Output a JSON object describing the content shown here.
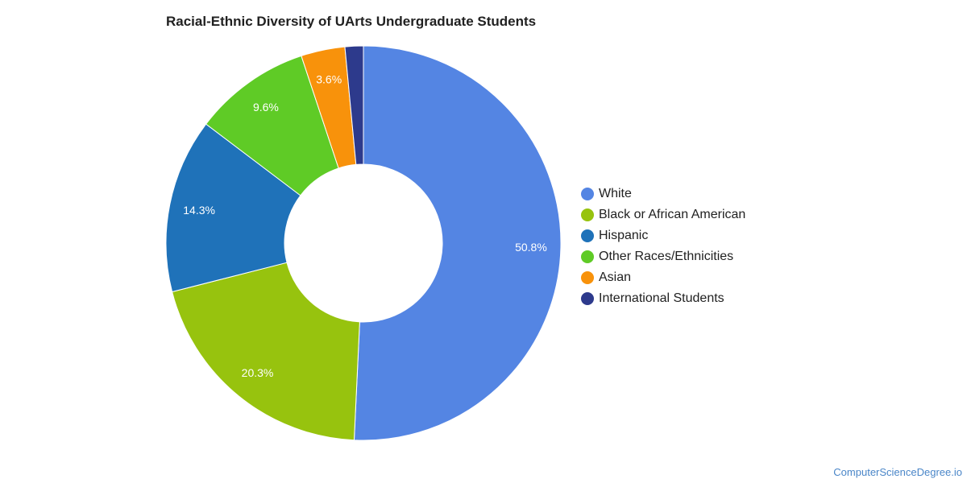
{
  "chart_data": {
    "type": "pie",
    "title": "Racial-Ethnic Diversity of UArts Undergraduate Students",
    "donut": true,
    "legend_position": "right",
    "slices": [
      {
        "label": "White",
        "value": 50.8,
        "value_label": "50.8%",
        "color": "#5485e3"
      },
      {
        "label": "Black or African American",
        "value": 20.3,
        "value_label": "20.3%",
        "color": "#97c30e"
      },
      {
        "label": "Hispanic",
        "value": 14.3,
        "value_label": "14.3%",
        "color": "#1f72b9"
      },
      {
        "label": "Other Races/Ethnicities",
        "value": 9.6,
        "value_label": "9.6%",
        "color": "#5fcb26"
      },
      {
        "label": "Asian",
        "value": 3.6,
        "value_label": "3.6%",
        "color": "#f8920b"
      },
      {
        "label": "International Students",
        "value": 1.5,
        "value_label": "",
        "color": "#2d3a8c"
      }
    ]
  },
  "watermark": "ComputerScienceDegree.io"
}
